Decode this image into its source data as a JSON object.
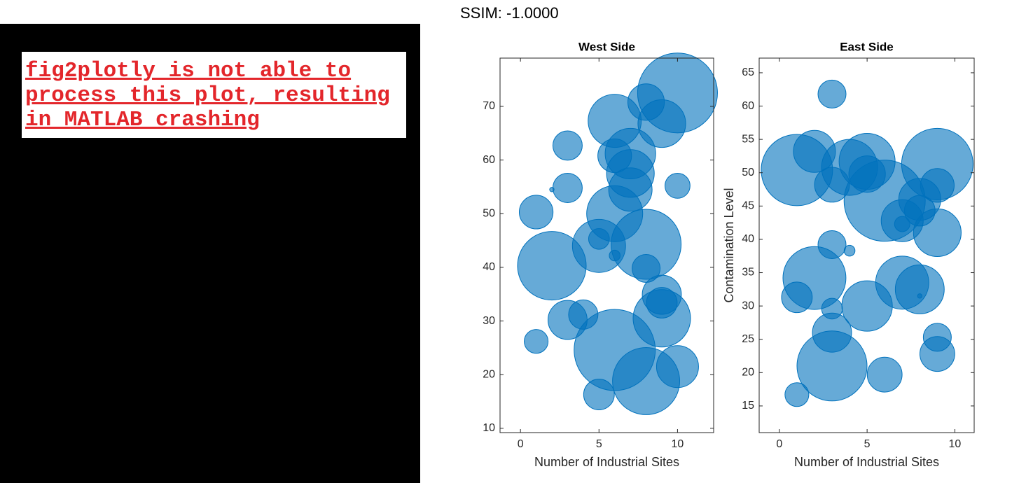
{
  "ssim_label": "SSIM: -1.0000",
  "notice": "fig2plotly is not able to process this plot, resulting in MATLAB crashing",
  "chart_data": [
    {
      "type": "bubble",
      "title": "West Side",
      "xlabel": "Number of Industrial Sites",
      "color": "#0072bd",
      "x": [
        10,
        8,
        9,
        6,
        3,
        6,
        7,
        7,
        7,
        3,
        2,
        10,
        1,
        6,
        8,
        5,
        5,
        2,
        6,
        8,
        9,
        9,
        9,
        4,
        3,
        1,
        6,
        8,
        10,
        5
      ],
      "values": [
        72.5,
        70.8,
        66.8,
        67.3,
        62.7,
        60.8,
        61.2,
        57.5,
        54.5,
        54.8,
        54.5,
        55.2,
        50.3,
        50,
        44.3,
        44,
        45.3,
        40.3,
        42.2,
        39.8,
        34.9,
        33.4,
        30.5,
        31.2,
        30.2,
        26.2,
        24.6,
        18.8,
        21.5,
        16.3
      ],
      "sizes": [
        325,
        68,
        116,
        144,
        44,
        58,
        130,
        116,
        96,
        44,
        1,
        32,
        58,
        160,
        250,
        144,
        22,
        240,
        6,
        40,
        78,
        48,
        168,
        44,
        78,
        29,
        336,
        230,
        90,
        48
      ],
      "xlim": [
        -1.3,
        12.3
      ],
      "ylim": [
        9.2,
        79
      ],
      "xticks": [
        0,
        5,
        10
      ],
      "yticks": [
        10,
        20,
        30,
        40,
        50,
        60,
        70
      ]
    },
    {
      "type": "bubble",
      "title": "East Side",
      "xlabel": "Number of Industrial Sites",
      "ylabel": "Contamination Level",
      "color": "#0072bd",
      "x": [
        3,
        1,
        2,
        4,
        5,
        5,
        3,
        9,
        9,
        6,
        8,
        7,
        7,
        8,
        9,
        3,
        4,
        2,
        7,
        8,
        8,
        1,
        3,
        5,
        3,
        9,
        9,
        3,
        6,
        1
      ],
      "values": [
        61.8,
        50.4,
        53.2,
        50.8,
        51.7,
        49.8,
        48.2,
        51.3,
        48.1,
        45.8,
        46,
        42.8,
        42.3,
        44.3,
        41,
        39.2,
        38.3,
        34.2,
        33.5,
        32.5,
        31.5,
        31.3,
        29.6,
        30,
        26,
        25.3,
        22.8,
        21,
        19.7,
        16.7
      ],
      "sizes": [
        40,
        260,
        90,
        160,
        160,
        68,
        62,
        260,
        58,
        336,
        90,
        90,
        12,
        48,
        116,
        40,
        6,
        202,
        144,
        122,
        1,
        48,
        22,
        130,
        78,
        40,
        62,
        250,
        62,
        29
      ],
      "xlim": [
        -1.15,
        11.1
      ],
      "ylim": [
        11,
        67.2
      ],
      "xticks": [
        0,
        5,
        10
      ],
      "yticks": [
        15,
        20,
        25,
        30,
        35,
        40,
        45,
        50,
        55,
        60,
        65
      ]
    }
  ]
}
